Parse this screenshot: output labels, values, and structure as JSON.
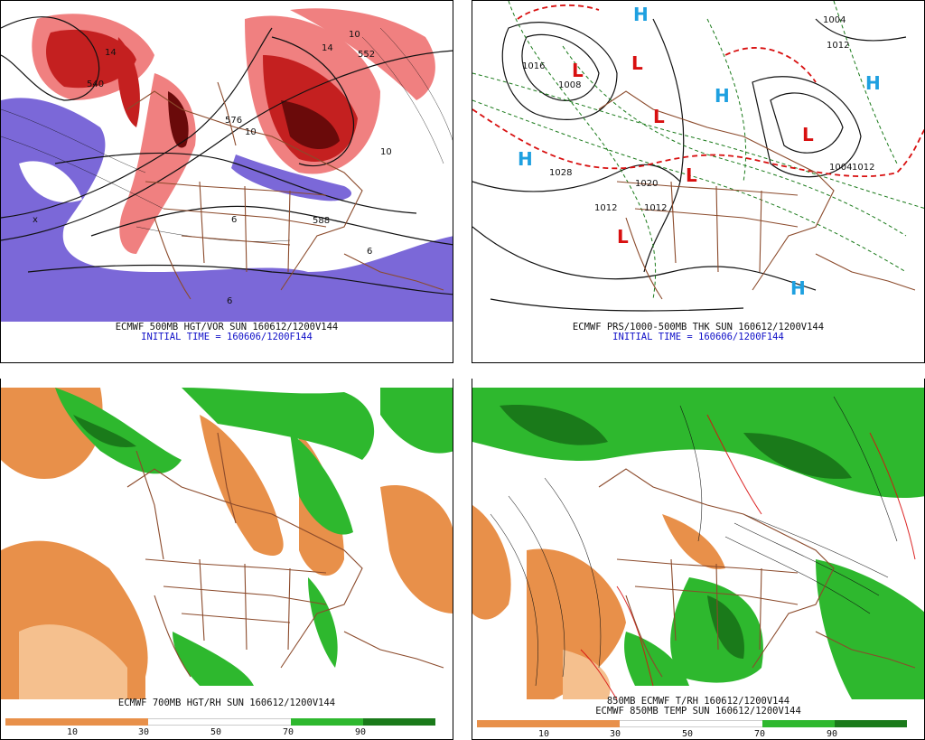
{
  "panels": [
    {
      "id": "p1",
      "caption_line1": "ECMWF 500MB HGT/VOR SUN 160612/1200V144",
      "caption_line2": "INITIAL TIME = 160606/1200F144",
      "contour_labels": [
        "540",
        "576",
        "588",
        "552",
        "14",
        "10",
        "6",
        "x",
        "10",
        "14",
        "10",
        "6",
        "6"
      ]
    },
    {
      "id": "p2",
      "caption_line1": "ECMWF PRS/1000-500MB THK SUN 160612/1200V144",
      "caption_line2": "INITIAL TIME = 160606/1200F144",
      "contour_labels": [
        "1004",
        "1012",
        "1016",
        "1008",
        "1028",
        "1020",
        "1012",
        "1012",
        "1004",
        "1012"
      ],
      "highs": [
        "H",
        "H",
        "H",
        "H",
        "H"
      ],
      "lows": [
        "L",
        "L",
        "L",
        "L",
        "L",
        "L"
      ]
    },
    {
      "id": "p3",
      "caption_line1": "ECMWF 700MB HGT/RH SUN 160612/1200V144",
      "colorbar_ticks": [
        "10",
        "30",
        "50",
        "70",
        "90"
      ]
    },
    {
      "id": "p4",
      "caption_line1": "850MB ECMWF T/RH 160612/1200V144",
      "caption_line2": "ECMWF 850MB TEMP SUN 160612/1200V144",
      "colorbar_ticks": [
        "10",
        "30",
        "50",
        "70",
        "90"
      ]
    }
  ],
  "colors": {
    "dry": "#e8904a",
    "dry_light": "#f5c08e",
    "moist": "#2eb82e",
    "moist_dark": "#1a7a1a",
    "vort_red": "#c42020",
    "vort_pink": "#f08080",
    "vort_purple": "#7b68d8",
    "map_brown": "#8b4a2b",
    "high_blue": "#1ea0e0",
    "low_red": "#d81010"
  }
}
